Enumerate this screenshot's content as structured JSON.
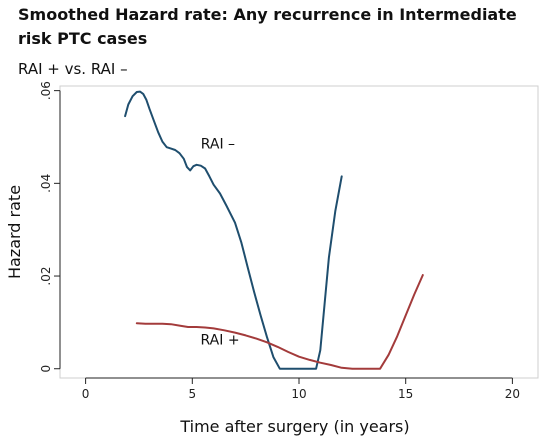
{
  "title": "Smoothed Hazard rate: Any recurrence in Intermediate risk PTC cases",
  "subtitle": "RAI + vs. RAI –",
  "chart_data": {
    "type": "line",
    "xlabel": "Time after surgery (in years)",
    "ylabel": "Hazard  rate",
    "xlim": [
      -1.2,
      21.2
    ],
    "ylim": [
      -0.002,
      0.061
    ],
    "xticks": [
      0,
      5,
      10,
      15,
      20
    ],
    "xtick_labels": [
      "0",
      "5",
      "10",
      "15",
      "20"
    ],
    "yticks": [
      0,
      0.02,
      0.04,
      0.06
    ],
    "ytick_labels": [
      "0",
      ".02",
      ".04",
      ".06"
    ],
    "grid": "none",
    "series": [
      {
        "name": "RAI –",
        "label": "RAI –",
        "color": "#1f4e6e",
        "x": [
          1.85,
          2.0,
          2.2,
          2.4,
          2.55,
          2.7,
          2.85,
          3.0,
          3.2,
          3.4,
          3.6,
          3.8,
          4.0,
          4.2,
          4.4,
          4.6,
          4.75,
          4.9,
          5.05,
          5.2,
          5.4,
          5.6,
          5.8,
          6.0,
          6.3,
          6.6,
          7.0,
          7.3,
          7.6,
          7.9,
          8.2,
          8.5,
          8.8,
          9.1,
          9.4,
          9.7,
          10.0,
          10.3,
          10.6,
          10.8,
          11.0,
          11.2,
          11.4,
          11.7,
          12.0
        ],
        "y": [
          0.0545,
          0.057,
          0.0588,
          0.0597,
          0.0598,
          0.0593,
          0.058,
          0.056,
          0.0535,
          0.051,
          0.049,
          0.0478,
          0.0475,
          0.0472,
          0.0465,
          0.0453,
          0.0435,
          0.0428,
          0.0437,
          0.044,
          0.0438,
          0.0432,
          0.0415,
          0.0397,
          0.0378,
          0.0352,
          0.0315,
          0.0272,
          0.0218,
          0.0165,
          0.0115,
          0.0068,
          0.0025,
          0.0,
          0.0,
          0.0,
          0.0,
          0.0,
          0.0,
          0.0,
          0.004,
          0.014,
          0.024,
          0.034,
          0.0415
        ]
      },
      {
        "name": "RAI +",
        "label": "RAI +",
        "color": "#a33b3b",
        "x": [
          2.4,
          2.8,
          3.2,
          3.6,
          4.0,
          4.4,
          4.8,
          5.2,
          5.6,
          6.0,
          6.5,
          7.0,
          7.5,
          8.0,
          8.5,
          9.0,
          9.5,
          10.0,
          10.5,
          11.0,
          11.5,
          12.0,
          12.5,
          13.0,
          13.5,
          13.8,
          14.2,
          14.6,
          15.0,
          15.4,
          15.8
        ],
        "y": [
          0.0098,
          0.0097,
          0.0097,
          0.0097,
          0.0096,
          0.0093,
          0.009,
          0.009,
          0.0089,
          0.0087,
          0.0083,
          0.0078,
          0.0072,
          0.0065,
          0.0057,
          0.0047,
          0.0036,
          0.0026,
          0.0019,
          0.0013,
          0.0008,
          0.0002,
          0.0,
          0.0,
          0.0,
          0.0,
          0.003,
          0.007,
          0.0115,
          0.016,
          0.0202
        ]
      }
    ]
  }
}
